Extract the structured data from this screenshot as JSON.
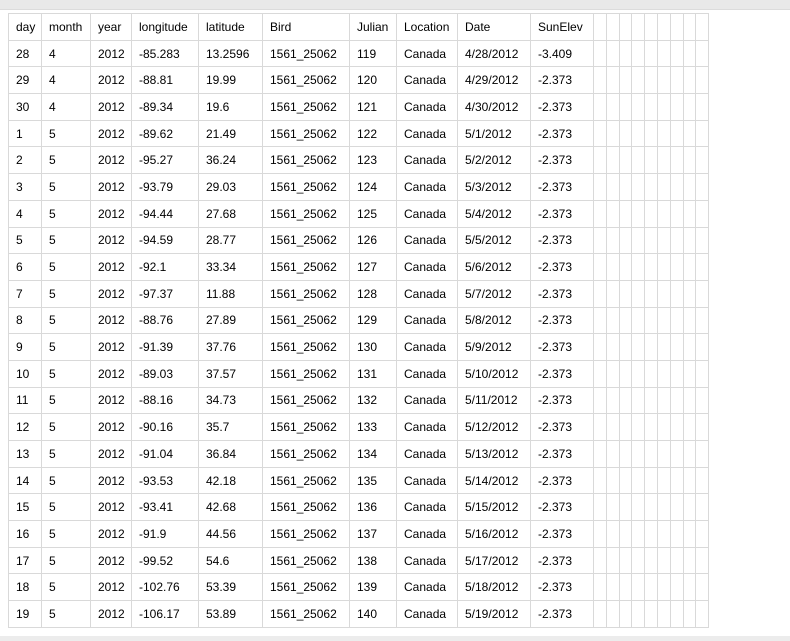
{
  "table": {
    "columns": [
      "day",
      "month",
      "year",
      "longitude",
      "latitude",
      "Bird",
      "Julian",
      "Location",
      "Date",
      "SunElev"
    ],
    "empty_column_count": 9,
    "rows": [
      [
        "28",
        "4",
        "2012",
        "-85.283",
        "13.2596",
        "1561_25062",
        "119",
        "Canada",
        "4/28/2012",
        "-3.409"
      ],
      [
        "29",
        "4",
        "2012",
        "-88.81",
        "19.99",
        "1561_25062",
        "120",
        "Canada",
        "4/29/2012",
        "-2.373"
      ],
      [
        "30",
        "4",
        "2012",
        "-89.34",
        "19.6",
        "1561_25062",
        "121",
        "Canada",
        "4/30/2012",
        "-2.373"
      ],
      [
        "1",
        "5",
        "2012",
        "-89.62",
        "21.49",
        "1561_25062",
        "122",
        "Canada",
        "5/1/2012",
        "-2.373"
      ],
      [
        "2",
        "5",
        "2012",
        "-95.27",
        "36.24",
        "1561_25062",
        "123",
        "Canada",
        "5/2/2012",
        "-2.373"
      ],
      [
        "3",
        "5",
        "2012",
        "-93.79",
        "29.03",
        "1561_25062",
        "124",
        "Canada",
        "5/3/2012",
        "-2.373"
      ],
      [
        "4",
        "5",
        "2012",
        "-94.44",
        "27.68",
        "1561_25062",
        "125",
        "Canada",
        "5/4/2012",
        "-2.373"
      ],
      [
        "5",
        "5",
        "2012",
        "-94.59",
        "28.77",
        "1561_25062",
        "126",
        "Canada",
        "5/5/2012",
        "-2.373"
      ],
      [
        "6",
        "5",
        "2012",
        "-92.1",
        "33.34",
        "1561_25062",
        "127",
        "Canada",
        "5/6/2012",
        "-2.373"
      ],
      [
        "7",
        "5",
        "2012",
        "-97.37",
        "11.88",
        "1561_25062",
        "128",
        "Canada",
        "5/7/2012",
        "-2.373"
      ],
      [
        "8",
        "5",
        "2012",
        "-88.76",
        "27.89",
        "1561_25062",
        "129",
        "Canada",
        "5/8/2012",
        "-2.373"
      ],
      [
        "9",
        "5",
        "2012",
        "-91.39",
        "37.76",
        "1561_25062",
        "130",
        "Canada",
        "5/9/2012",
        "-2.373"
      ],
      [
        "10",
        "5",
        "2012",
        "-89.03",
        "37.57",
        "1561_25062",
        "131",
        "Canada",
        "5/10/2012",
        "-2.373"
      ],
      [
        "11",
        "5",
        "2012",
        "-88.16",
        "34.73",
        "1561_25062",
        "132",
        "Canada",
        "5/11/2012",
        "-2.373"
      ],
      [
        "12",
        "5",
        "2012",
        "-90.16",
        "35.7",
        "1561_25062",
        "133",
        "Canada",
        "5/12/2012",
        "-2.373"
      ],
      [
        "13",
        "5",
        "2012",
        "-91.04",
        "36.84",
        "1561_25062",
        "134",
        "Canada",
        "5/13/2012",
        "-2.373"
      ],
      [
        "14",
        "5",
        "2012",
        "-93.53",
        "42.18",
        "1561_25062",
        "135",
        "Canada",
        "5/14/2012",
        "-2.373"
      ],
      [
        "15",
        "5",
        "2012",
        "-93.41",
        "42.68",
        "1561_25062",
        "136",
        "Canada",
        "5/15/2012",
        "-2.373"
      ],
      [
        "16",
        "5",
        "2012",
        "-91.9",
        "44.56",
        "1561_25062",
        "137",
        "Canada",
        "5/16/2012",
        "-2.373"
      ],
      [
        "17",
        "5",
        "2012",
        "-99.52",
        "54.6",
        "1561_25062",
        "138",
        "Canada",
        "5/17/2012",
        "-2.373"
      ],
      [
        "18",
        "5",
        "2012",
        "-102.76",
        "53.39",
        "1561_25062",
        "139",
        "Canada",
        "5/18/2012",
        "-2.373"
      ],
      [
        "19",
        "5",
        "2012",
        "-106.17",
        "53.89",
        "1561_25062",
        "140",
        "Canada",
        "5/19/2012",
        "-2.373"
      ]
    ]
  },
  "colors": {
    "background": "#ffffff",
    "grid_line": "#d9d9d9",
    "outer_border": "#c9c9c9",
    "top_bar": "#e9e9e9",
    "bottom_bar": "#ececec",
    "text": "#000000"
  }
}
